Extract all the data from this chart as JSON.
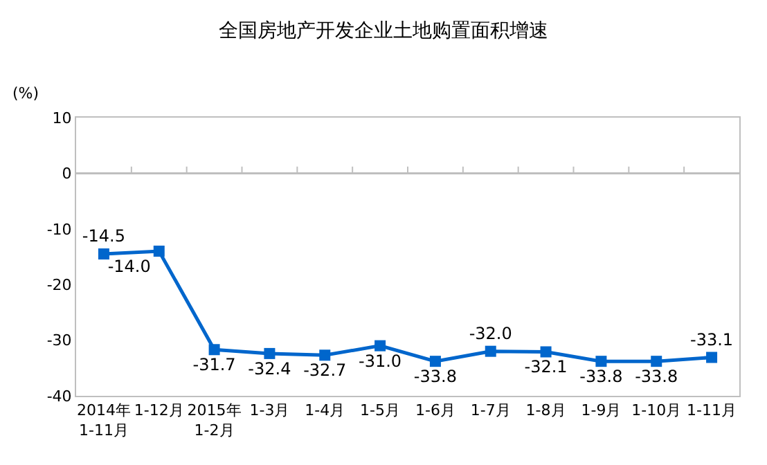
{
  "chart_data": {
    "type": "line",
    "title": "全国房地产开发企业土地购置面积增速",
    "ylabel": "(%)",
    "categories": [
      "2014年\n1-11月",
      "1-12月",
      "2015年\n1-2月",
      "1-3月",
      "1-4月",
      "1-5月",
      "1-6月",
      "1-7月",
      "1-8月",
      "1-9月",
      "1-10月",
      "1-11月"
    ],
    "series": [
      {
        "color": "#0066cc",
        "values": [
          -14.5,
          -14.0,
          -31.7,
          -32.4,
          -32.7,
          -31.0,
          -33.8,
          -32.0,
          -32.1,
          -33.8,
          -33.8,
          -33.1
        ],
        "value_labels": [
          "-14.5",
          "-14.0",
          "-31.7",
          "-32.4",
          "-32.7",
          "-31.0",
          "-33.8",
          "-32.0",
          "-32.1",
          "-33.8",
          "-33.8",
          "-33.1"
        ]
      }
    ],
    "ylim": [
      -40,
      10
    ],
    "yticks": [
      -40,
      -30,
      -20,
      -10,
      0,
      10
    ],
    "ref_lines": [
      {
        "axis": "y",
        "value": 0,
        "color": "#bfbfbf"
      }
    ],
    "marker": "square",
    "line_style": "solid"
  }
}
